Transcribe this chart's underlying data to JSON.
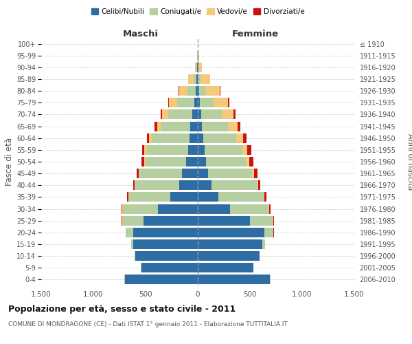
{
  "age_groups": [
    "0-4",
    "5-9",
    "10-14",
    "15-19",
    "20-24",
    "25-29",
    "30-34",
    "35-39",
    "40-44",
    "45-49",
    "50-54",
    "55-59",
    "60-64",
    "65-69",
    "70-74",
    "75-79",
    "80-84",
    "85-89",
    "90-94",
    "95-99",
    "100+"
  ],
  "birth_years": [
    "2006-2010",
    "2001-2005",
    "1996-2000",
    "1991-1995",
    "1986-1990",
    "1981-1985",
    "1976-1980",
    "1971-1975",
    "1966-1970",
    "1961-1965",
    "1956-1960",
    "1951-1955",
    "1946-1950",
    "1941-1945",
    "1936-1940",
    "1931-1935",
    "1926-1930",
    "1921-1925",
    "1916-1920",
    "1911-1915",
    "≤ 1910"
  ],
  "colors": {
    "celibe": "#2e6da4",
    "coniugato": "#b5cfa0",
    "vedovo": "#f5c97a",
    "divorziato": "#cc1111"
  },
  "male": {
    "celibe": [
      700,
      540,
      600,
      620,
      620,
      520,
      380,
      260,
      180,
      150,
      110,
      90,
      80,
      70,
      55,
      35,
      20,
      10,
      5,
      3,
      2
    ],
    "coniugato": [
      5,
      5,
      5,
      20,
      70,
      200,
      340,
      400,
      420,
      410,
      390,
      400,
      360,
      280,
      230,
      160,
      80,
      30,
      8,
      2,
      0
    ],
    "vedovo": [
      0,
      0,
      0,
      0,
      1,
      2,
      2,
      3,
      5,
      8,
      15,
      20,
      25,
      40,
      55,
      80,
      80,
      50,
      15,
      3,
      0
    ],
    "divorziato": [
      0,
      0,
      0,
      0,
      2,
      5,
      10,
      15,
      15,
      20,
      25,
      25,
      25,
      22,
      18,
      8,
      4,
      2,
      1,
      0,
      0
    ]
  },
  "female": {
    "nubile": [
      690,
      530,
      590,
      620,
      640,
      500,
      310,
      200,
      130,
      100,
      80,
      65,
      50,
      40,
      30,
      20,
      12,
      8,
      5,
      3,
      2
    ],
    "coniugata": [
      5,
      5,
      5,
      25,
      85,
      220,
      370,
      430,
      440,
      420,
      380,
      360,
      320,
      250,
      200,
      130,
      60,
      20,
      5,
      2,
      0
    ],
    "vedova": [
      0,
      0,
      0,
      0,
      1,
      2,
      3,
      5,
      10,
      20,
      35,
      50,
      65,
      90,
      110,
      140,
      140,
      90,
      30,
      5,
      0
    ],
    "divorziata": [
      0,
      0,
      0,
      1,
      3,
      8,
      15,
      20,
      20,
      30,
      35,
      35,
      30,
      25,
      20,
      10,
      5,
      2,
      1,
      0,
      0
    ]
  },
  "xlim": 1500,
  "xticks": [
    -1500,
    -1000,
    -500,
    0,
    500,
    1000,
    1500
  ],
  "xticklabels": [
    "1.500",
    "1.000",
    "500",
    "0",
    "500",
    "1.000",
    "1.500"
  ],
  "title": "Popolazione per età, sesso e stato civile - 2011",
  "subtitle": "COMUNE DI MONDRAGONE (CE) - Dati ISTAT 1° gennaio 2011 - Elaborazione TUTTITALIA.IT",
  "ylabel_left": "Fasce di età",
  "ylabel_right": "Anni di nascita",
  "label_maschi": "Maschi",
  "label_femmine": "Femmine",
  "legend_labels": [
    "Celibi/Nubili",
    "Coniugati/e",
    "Vedovi/e",
    "Divorziati/e"
  ],
  "bg_color": "#ffffff",
  "grid_color": "#cccccc"
}
